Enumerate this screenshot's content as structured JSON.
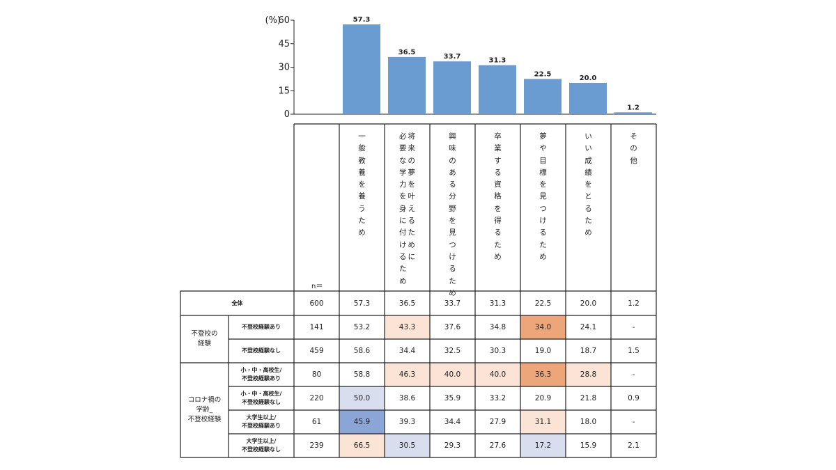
{
  "chart_data": {
    "type": "bar",
    "y_unit": "(%)",
    "ylim": [
      0,
      60
    ],
    "yticks": [
      "0",
      "15",
      "30",
      "45",
      "60"
    ],
    "categories": [
      "一般教養を養うため",
      "将来の夢を叶えるために必要な学力を身に付けるため",
      "興味のある分野を見つけるため",
      "卒業する資格を得るため",
      "夢や目標を見つけるため",
      "いい成績をとるため",
      "その他"
    ],
    "values": [
      57.3,
      36.5,
      33.7,
      31.3,
      22.5,
      20.0,
      1.2
    ],
    "value_labels": [
      "57.3",
      "36.5",
      "33.7",
      "31.3",
      "22.5",
      "20.0",
      "1.2"
    ],
    "bar_color": "#6a9bd1",
    "header_columns": [
      [
        "一般教養を養うため"
      ],
      [
        "必要な学力を身に付けるため",
        "将来の夢を叶えるために"
      ],
      [
        "興味のある分野を見つけるため"
      ],
      [
        "卒業する資格を得るため"
      ],
      [
        "夢や目標を見つけるため"
      ],
      [
        "いい成績をとるため"
      ],
      [
        "その他"
      ]
    ],
    "n_label": "n＝",
    "table": {
      "rows": [
        {
          "group": "",
          "label": "全体",
          "n": "600",
          "cells": [
            "57.3",
            "36.5",
            "33.7",
            "31.3",
            "22.5",
            "20.0",
            "1.2"
          ],
          "shades": [
            "",
            "",
            "",
            "",
            "",
            "",
            ""
          ]
        },
        {
          "group": "不登校の経験",
          "label": "不登校経験あり",
          "n": "141",
          "cells": [
            "53.2",
            "43.3",
            "37.6",
            "34.8",
            "34.0",
            "24.1",
            "-"
          ],
          "shades": [
            "",
            "lo",
            "",
            "",
            "hi",
            "",
            ""
          ]
        },
        {
          "group": "不登校の経験",
          "label": "不登校経験なし",
          "n": "459",
          "cells": [
            "58.6",
            "34.4",
            "32.5",
            "30.3",
            "19.0",
            "18.7",
            "1.5"
          ],
          "shades": [
            "",
            "",
            "",
            "",
            "",
            "",
            ""
          ]
        },
        {
          "group": "コロナ禍の学齢_不登校経験",
          "label": "小・中・高校生/不登校経験あり",
          "n": "80",
          "cells": [
            "58.8",
            "46.3",
            "40.0",
            "40.0",
            "36.3",
            "28.8",
            "-"
          ],
          "shades": [
            "",
            "lo",
            "lo",
            "lo",
            "hi",
            "lo",
            ""
          ]
        },
        {
          "group": "コロナ禍の学齢_不登校経験",
          "label": "小・中・高校生/不登校経験なし",
          "n": "220",
          "cells": [
            "50.0",
            "38.6",
            "35.9",
            "33.2",
            "20.9",
            "21.8",
            "0.9"
          ],
          "shades": [
            "blo",
            "",
            "",
            "",
            "",
            "",
            ""
          ]
        },
        {
          "group": "コロナ禍の学齢_不登校経験",
          "label": "大学生以上/不登校経験あり",
          "n": "61",
          "cells": [
            "45.9",
            "39.3",
            "34.4",
            "27.9",
            "31.1",
            "18.0",
            "-"
          ],
          "shades": [
            "bhi",
            "",
            "",
            "",
            "lo",
            "",
            ""
          ]
        },
        {
          "group": "コロナ禍の学齢_不登校経験",
          "label": "大学生以上/不登校経験なし",
          "n": "239",
          "cells": [
            "66.5",
            "30.5",
            "29.3",
            "27.6",
            "17.2",
            "15.9",
            "2.1"
          ],
          "shades": [
            "lo",
            "blo",
            "",
            "",
            "blo",
            "",
            ""
          ]
        }
      ],
      "group_labels": {
        "不登校の経験": [
          "不登校の",
          "経験"
        ],
        "コロナ禍の学齢_不登校経験": [
          "コロナ禍の",
          "学齢_",
          "不登校経験"
        ]
      },
      "row_label_lines": {
        "全体": [
          "全体"
        ],
        "不登校経験あり": [
          "不登校経験あり"
        ],
        "不登校経験なし": [
          "不登校経験なし"
        ],
        "小・中・高校生/不登校経験あり": [
          "小・中・高校生/",
          "不登校経験あり"
        ],
        "小・中・高校生/不登校経験なし": [
          "小・中・高校生/",
          "不登校経験なし"
        ],
        "大学生以上/不登校経験あり": [
          "大学生以上/",
          "不登校経験あり"
        ],
        "大学生以上/不登校経験なし": [
          "大学生以上/",
          "不登校経験なし"
        ]
      }
    },
    "shade_colors": {
      "hi": "#eda57a",
      "lo": "#fbe3d6",
      "bhi": "#8aa5d6",
      "blo": "#d9deee"
    }
  }
}
